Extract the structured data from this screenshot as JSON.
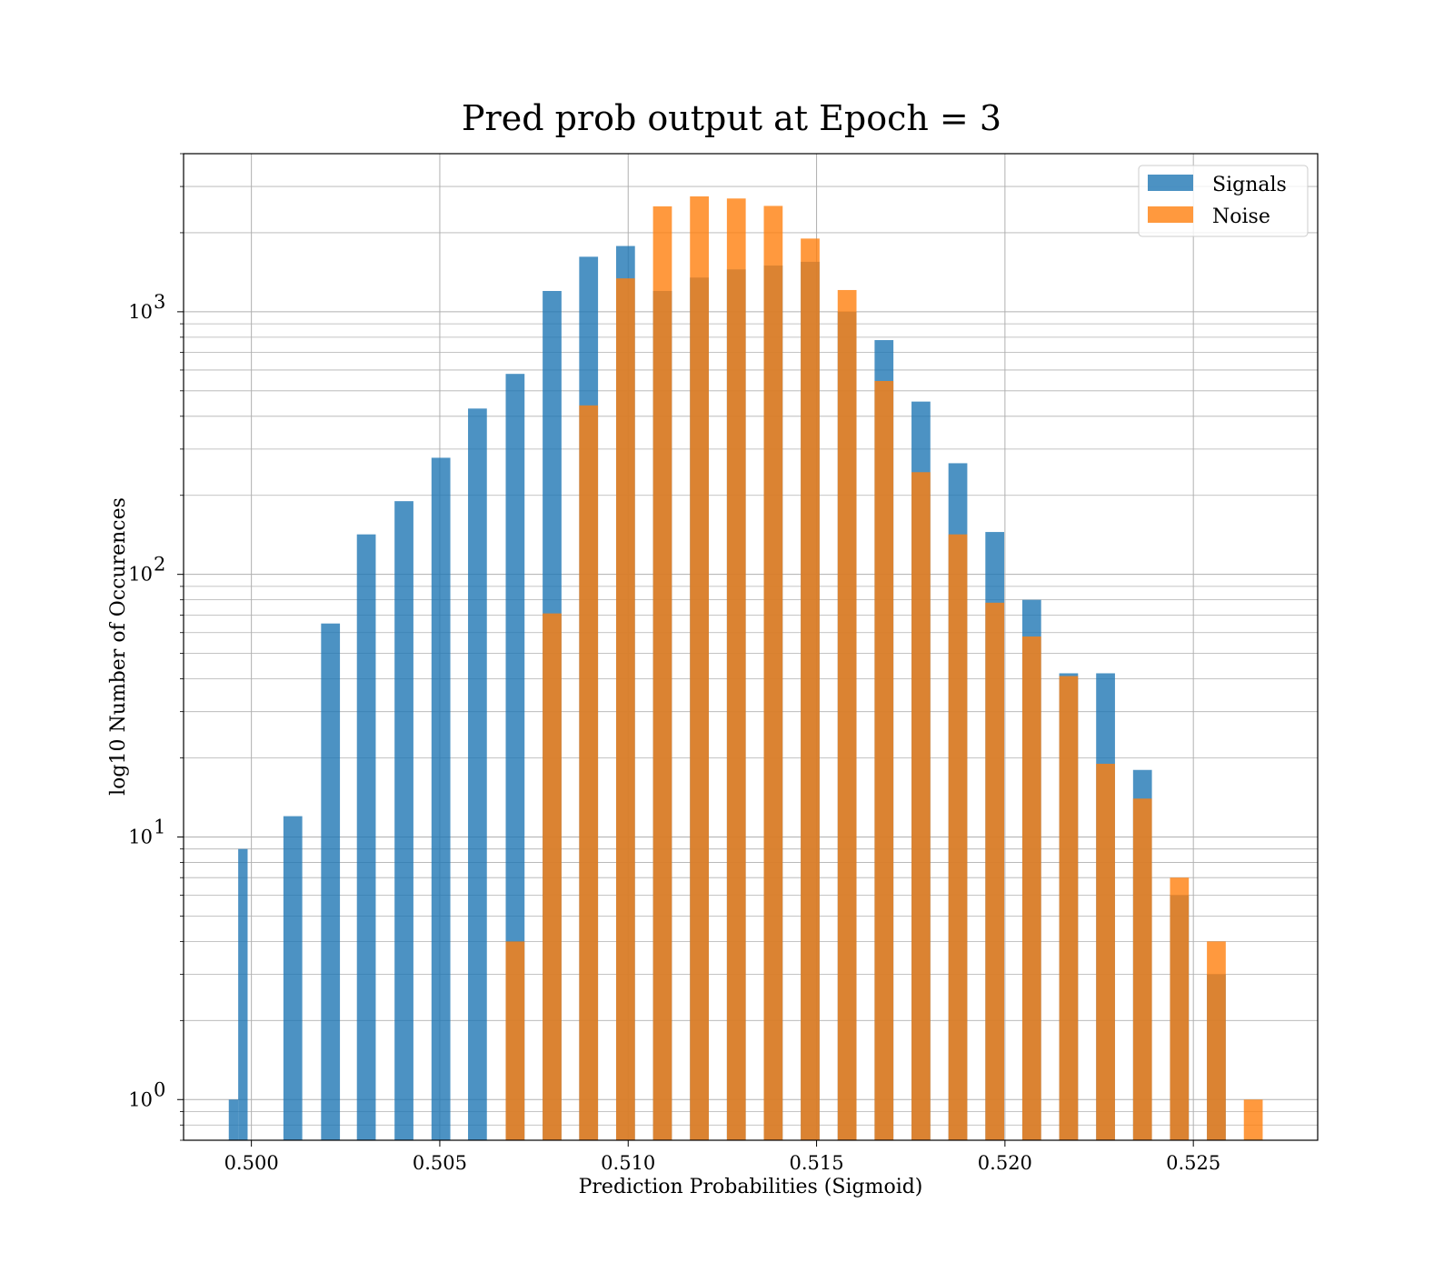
{
  "chart_data": {
    "type": "bar",
    "title": "Pred prob output at Epoch = 3",
    "xlabel": "Prediction Probabilities (Sigmoid)",
    "ylabel": "log10 Number of Occurences",
    "yscale": "log",
    "xlim": [
      0.4982,
      0.5283
    ],
    "ylim": [
      0.7,
      4000
    ],
    "grid": true,
    "legend_position": "top-right",
    "x_ticks": [
      {
        "value": 0.5,
        "label": "0.500"
      },
      {
        "value": 0.505,
        "label": "0.505"
      },
      {
        "value": 0.51,
        "label": "0.510"
      },
      {
        "value": 0.515,
        "label": "0.515"
      },
      {
        "value": 0.52,
        "label": "0.520"
      },
      {
        "value": 0.525,
        "label": "0.525"
      }
    ],
    "y_ticks": [
      {
        "value": 1,
        "base": "10",
        "exp": "0"
      },
      {
        "value": 10,
        "base": "10",
        "exp": "1"
      },
      {
        "value": 100,
        "base": "10",
        "exp": "2"
      },
      {
        "value": 1000,
        "base": "10",
        "exp": "3"
      }
    ],
    "series": [
      {
        "name": "Signals",
        "color": "#1f77b4",
        "opacity": 0.8,
        "bins": [
          {
            "x0": 0.4994,
            "x1": 0.49965,
            "y": 1
          },
          {
            "x0": 0.49965,
            "x1": 0.4999,
            "y": 9
          },
          {
            "x0": 0.50085,
            "x1": 0.50135,
            "y": 12
          },
          {
            "x0": 0.50185,
            "x1": 0.50235,
            "y": 65
          },
          {
            "x0": 0.5028,
            "x1": 0.5033,
            "y": 142
          },
          {
            "x0": 0.5038,
            "x1": 0.5043,
            "y": 190
          },
          {
            "x0": 0.50478,
            "x1": 0.50528,
            "y": 278
          },
          {
            "x0": 0.50575,
            "x1": 0.50625,
            "y": 428
          },
          {
            "x0": 0.50675,
            "x1": 0.50725,
            "y": 580
          },
          {
            "x0": 0.50773,
            "x1": 0.50823,
            "y": 1200
          },
          {
            "x0": 0.5087,
            "x1": 0.5092,
            "y": 1620
          },
          {
            "x0": 0.50968,
            "x1": 0.51018,
            "y": 1780
          },
          {
            "x0": 0.51066,
            "x1": 0.51116,
            "y": 1200
          },
          {
            "x0": 0.51164,
            "x1": 0.51214,
            "y": 1350
          },
          {
            "x0": 0.51262,
            "x1": 0.51312,
            "y": 1450
          },
          {
            "x0": 0.5136,
            "x1": 0.5141,
            "y": 1500
          },
          {
            "x0": 0.51458,
            "x1": 0.51508,
            "y": 1550
          },
          {
            "x0": 0.51556,
            "x1": 0.51606,
            "y": 1000
          },
          {
            "x0": 0.51654,
            "x1": 0.51704,
            "y": 780
          },
          {
            "x0": 0.51752,
            "x1": 0.51802,
            "y": 455
          },
          {
            "x0": 0.5185,
            "x1": 0.519,
            "y": 265
          },
          {
            "x0": 0.51948,
            "x1": 0.51998,
            "y": 145
          },
          {
            "x0": 0.52046,
            "x1": 0.52096,
            "y": 80
          },
          {
            "x0": 0.52144,
            "x1": 0.52194,
            "y": 42
          },
          {
            "x0": 0.52242,
            "x1": 0.52292,
            "y": 42
          },
          {
            "x0": 0.5234,
            "x1": 0.5239,
            "y": 18
          },
          {
            "x0": 0.52438,
            "x1": 0.52488,
            "y": 6
          },
          {
            "x0": 0.52536,
            "x1": 0.52586,
            "y": 3
          }
        ]
      },
      {
        "name": "Noise",
        "color": "#ff7f0e",
        "opacity": 0.8,
        "bins": [
          {
            "x0": 0.50675,
            "x1": 0.50725,
            "y": 4
          },
          {
            "x0": 0.50773,
            "x1": 0.50823,
            "y": 71
          },
          {
            "x0": 0.5087,
            "x1": 0.5092,
            "y": 440
          },
          {
            "x0": 0.50968,
            "x1": 0.51018,
            "y": 1340
          },
          {
            "x0": 0.51066,
            "x1": 0.51116,
            "y": 2520
          },
          {
            "x0": 0.51164,
            "x1": 0.51214,
            "y": 2750
          },
          {
            "x0": 0.51262,
            "x1": 0.51312,
            "y": 2700
          },
          {
            "x0": 0.5136,
            "x1": 0.5141,
            "y": 2530
          },
          {
            "x0": 0.51458,
            "x1": 0.51508,
            "y": 1900
          },
          {
            "x0": 0.51556,
            "x1": 0.51606,
            "y": 1210
          },
          {
            "x0": 0.51654,
            "x1": 0.51704,
            "y": 545
          },
          {
            "x0": 0.51752,
            "x1": 0.51802,
            "y": 245
          },
          {
            "x0": 0.5185,
            "x1": 0.519,
            "y": 142
          },
          {
            "x0": 0.51948,
            "x1": 0.51998,
            "y": 78
          },
          {
            "x0": 0.52046,
            "x1": 0.52096,
            "y": 58
          },
          {
            "x0": 0.52144,
            "x1": 0.52194,
            "y": 41
          },
          {
            "x0": 0.52242,
            "x1": 0.52292,
            "y": 19
          },
          {
            "x0": 0.5234,
            "x1": 0.5239,
            "y": 14
          },
          {
            "x0": 0.52438,
            "x1": 0.52488,
            "y": 7
          },
          {
            "x0": 0.52536,
            "x1": 0.52586,
            "y": 4
          },
          {
            "x0": 0.52634,
            "x1": 0.52684,
            "y": 1
          }
        ]
      }
    ]
  }
}
